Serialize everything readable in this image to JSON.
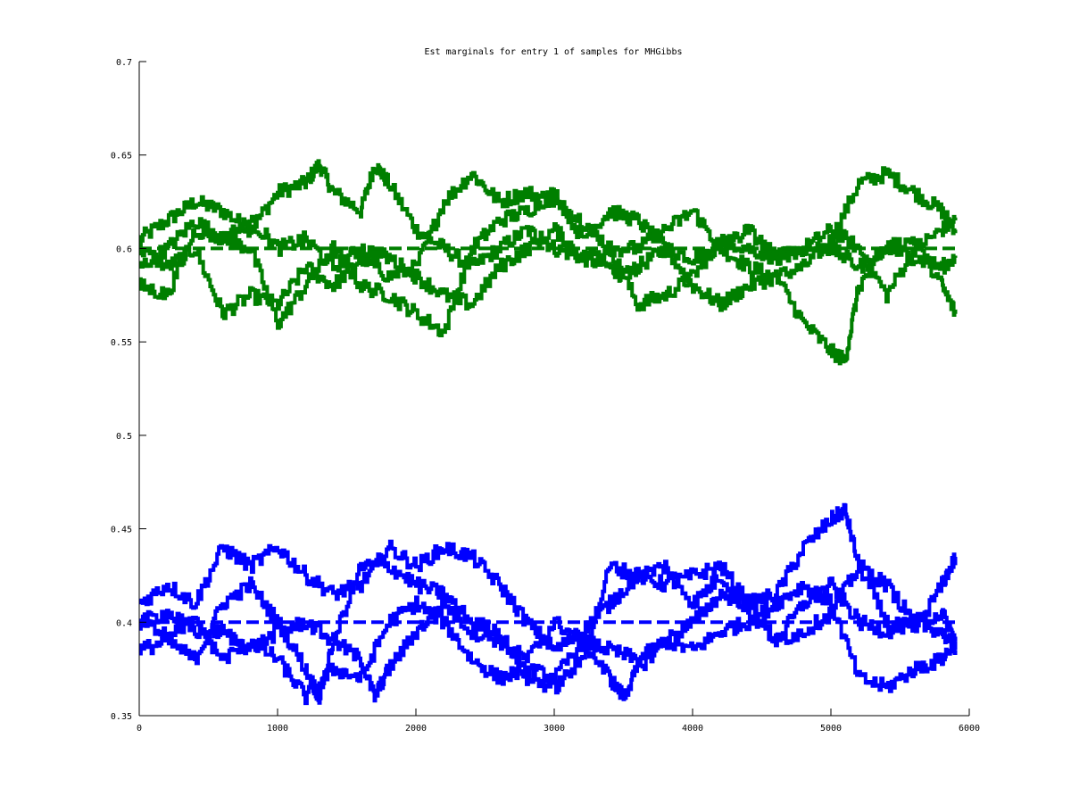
{
  "chart_data": {
    "type": "line",
    "title": "Est marginals for entry 1 of samples for MHGibbs",
    "xlabel": "",
    "ylabel": "",
    "xlim": [
      0,
      6000
    ],
    "ylim": [
      0.35,
      0.7
    ],
    "grid": false,
    "legend": "none",
    "x_ticks": [
      0,
      1000,
      2000,
      3000,
      4000,
      5000,
      6000
    ],
    "x_tick_labels": [
      "0",
      "1000",
      "2000",
      "3000",
      "4000",
      "5000",
      "6000"
    ],
    "y_ticks": [
      0.35,
      0.4,
      0.45,
      0.5,
      0.55,
      0.6,
      0.65,
      0.7
    ],
    "y_tick_labels": [
      "0.35",
      "0.4",
      "0.45",
      "0.5",
      "0.55",
      "0.6",
      "0.65",
      "0.7"
    ],
    "colors": {
      "green": "#007f00",
      "blue": "#0000ff",
      "axes": "#000000"
    },
    "reference_lines": [
      {
        "color": "green",
        "style": "dashed",
        "x": [
          0,
          5900
        ],
        "y": [
          0.6,
          0.6
        ]
      },
      {
        "color": "blue",
        "style": "dashed",
        "x": [
          0,
          5900
        ],
        "y": [
          0.4,
          0.4
        ]
      }
    ],
    "series": [
      {
        "color": "green",
        "x": [
          0,
          200,
          400,
          600,
          800,
          1000,
          1200,
          1300,
          1400,
          1600,
          1700,
          1800,
          2000,
          2200,
          2400,
          2600,
          2800,
          3000,
          3200,
          3400,
          3500,
          3600,
          3800,
          4000,
          4200,
          4400,
          4600,
          4800,
          5000,
          5200,
          5400,
          5600,
          5800,
          5900
        ],
        "y": [
          0.605,
          0.615,
          0.625,
          0.62,
          0.61,
          0.63,
          0.635,
          0.645,
          0.63,
          0.62,
          0.645,
          0.635,
          0.61,
          0.6,
          0.59,
          0.6,
          0.61,
          0.6,
          0.595,
          0.59,
          0.585,
          0.59,
          0.6,
          0.595,
          0.6,
          0.59,
          0.585,
          0.59,
          0.605,
          0.635,
          0.64,
          0.63,
          0.62,
          0.61
        ]
      },
      {
        "color": "green",
        "x": [
          0,
          200,
          400,
          600,
          800,
          1000,
          1200,
          1400,
          1600,
          1800,
          2000,
          2200,
          2400,
          2600,
          2800,
          3000,
          3200,
          3400,
          3600,
          3800,
          4000,
          4200,
          4400,
          4600,
          4800,
          5000,
          5200,
          5400,
          5600,
          5800,
          5900
        ],
        "y": [
          0.6,
          0.59,
          0.6,
          0.565,
          0.575,
          0.57,
          0.59,
          0.58,
          0.595,
          0.585,
          0.59,
          0.625,
          0.64,
          0.625,
          0.63,
          0.625,
          0.615,
          0.6,
          0.57,
          0.575,
          0.585,
          0.605,
          0.6,
          0.595,
          0.6,
          0.61,
          0.6,
          0.575,
          0.6,
          0.61,
          0.615
        ]
      },
      {
        "color": "green",
        "x": [
          0,
          200,
          400,
          600,
          800,
          1000,
          1200,
          1400,
          1600,
          1800,
          2000,
          2200,
          2400,
          2600,
          2800,
          3000,
          3200,
          3400,
          3600,
          3800,
          4000,
          4200,
          4400,
          4600,
          4800,
          5000,
          5100,
          5200,
          5400,
          5600,
          5800,
          5900
        ],
        "y": [
          0.59,
          0.6,
          0.615,
          0.605,
          0.6,
          0.56,
          0.58,
          0.6,
          0.58,
          0.575,
          0.565,
          0.555,
          0.6,
          0.615,
          0.62,
          0.63,
          0.605,
          0.62,
          0.615,
          0.6,
          0.58,
          0.57,
          0.58,
          0.585,
          0.56,
          0.545,
          0.54,
          0.58,
          0.6,
          0.595,
          0.59,
          0.595
        ]
      },
      {
        "color": "green",
        "x": [
          0,
          200,
          400,
          600,
          800,
          1000,
          1200,
          1400,
          1600,
          1800,
          2000,
          2200,
          2400,
          2600,
          2800,
          3000,
          3200,
          3400,
          3600,
          3800,
          4000,
          4200,
          4400,
          4600,
          4800,
          5000,
          5200,
          5400,
          5600,
          5800,
          5900
        ],
        "y": [
          0.58,
          0.575,
          0.61,
          0.605,
          0.615,
          0.6,
          0.605,
          0.59,
          0.6,
          0.595,
          0.585,
          0.575,
          0.57,
          0.59,
          0.6,
          0.61,
          0.595,
          0.6,
          0.6,
          0.61,
          0.62,
          0.6,
          0.61,
          0.595,
          0.6,
          0.6,
          0.59,
          0.6,
          0.605,
          0.58,
          0.565
        ]
      },
      {
        "color": "blue",
        "x": [
          0,
          200,
          400,
          600,
          800,
          1000,
          1200,
          1400,
          1600,
          1800,
          2000,
          2200,
          2400,
          2600,
          2800,
          3000,
          3200,
          3400,
          3600,
          3800,
          4000,
          4200,
          4400,
          4600,
          4800,
          5000,
          5100,
          5200,
          5400,
          5600,
          5800,
          5900
        ],
        "y": [
          0.41,
          0.42,
          0.41,
          0.44,
          0.43,
          0.44,
          0.425,
          0.415,
          0.42,
          0.44,
          0.43,
          0.44,
          0.435,
          0.42,
          0.4,
          0.385,
          0.395,
          0.41,
          0.425,
          0.42,
          0.425,
          0.43,
          0.41,
          0.415,
          0.44,
          0.455,
          0.46,
          0.43,
          0.4,
          0.395,
          0.42,
          0.435
        ]
      },
      {
        "color": "blue",
        "x": [
          0,
          200,
          400,
          600,
          800,
          1000,
          1200,
          1400,
          1600,
          1800,
          2000,
          2200,
          2400,
          2600,
          2800,
          3000,
          3200,
          3400,
          3600,
          3800,
          4000,
          4200,
          4400,
          4600,
          4800,
          5000,
          5200,
          5400,
          5600,
          5800,
          5900
        ],
        "y": [
          0.4,
          0.395,
          0.4,
          0.38,
          0.39,
          0.38,
          0.36,
          0.375,
          0.37,
          0.4,
          0.41,
          0.4,
          0.38,
          0.37,
          0.375,
          0.37,
          0.39,
          0.385,
          0.38,
          0.39,
          0.385,
          0.395,
          0.4,
          0.41,
          0.42,
          0.41,
          0.37,
          0.365,
          0.375,
          0.38,
          0.39
        ]
      },
      {
        "color": "blue",
        "x": [
          0,
          200,
          400,
          600,
          800,
          1000,
          1200,
          1300,
          1400,
          1600,
          1700,
          1800,
          2000,
          2200,
          2400,
          2600,
          2800,
          3000,
          3200,
          3400,
          3500,
          3600,
          3800,
          4000,
          4200,
          4400,
          4600,
          4800,
          5000,
          5200,
          5400,
          5600,
          5800,
          5900
        ],
        "y": [
          0.385,
          0.39,
          0.38,
          0.41,
          0.42,
          0.4,
          0.375,
          0.36,
          0.39,
          0.38,
          0.36,
          0.375,
          0.395,
          0.41,
          0.395,
          0.39,
          0.38,
          0.4,
          0.39,
          0.37,
          0.36,
          0.375,
          0.39,
          0.4,
          0.415,
          0.41,
          0.39,
          0.41,
          0.42,
          0.4,
          0.395,
          0.4,
          0.395,
          0.385
        ]
      },
      {
        "color": "blue",
        "x": [
          0,
          200,
          400,
          600,
          800,
          1000,
          1200,
          1400,
          1600,
          1800,
          2000,
          2200,
          2400,
          2600,
          2800,
          3000,
          3200,
          3400,
          3600,
          3800,
          4000,
          4200,
          4400,
          4600,
          4800,
          5000,
          5200,
          5400,
          5600,
          5800,
          5900
        ],
        "y": [
          0.4,
          0.405,
          0.395,
          0.395,
          0.385,
          0.395,
          0.4,
          0.39,
          0.43,
          0.43,
          0.42,
          0.415,
          0.4,
          0.395,
          0.37,
          0.365,
          0.38,
          0.43,
          0.425,
          0.43,
          0.41,
          0.425,
          0.405,
          0.39,
          0.395,
          0.405,
          0.43,
          0.42,
          0.4,
          0.405,
          0.39
        ]
      }
    ]
  }
}
